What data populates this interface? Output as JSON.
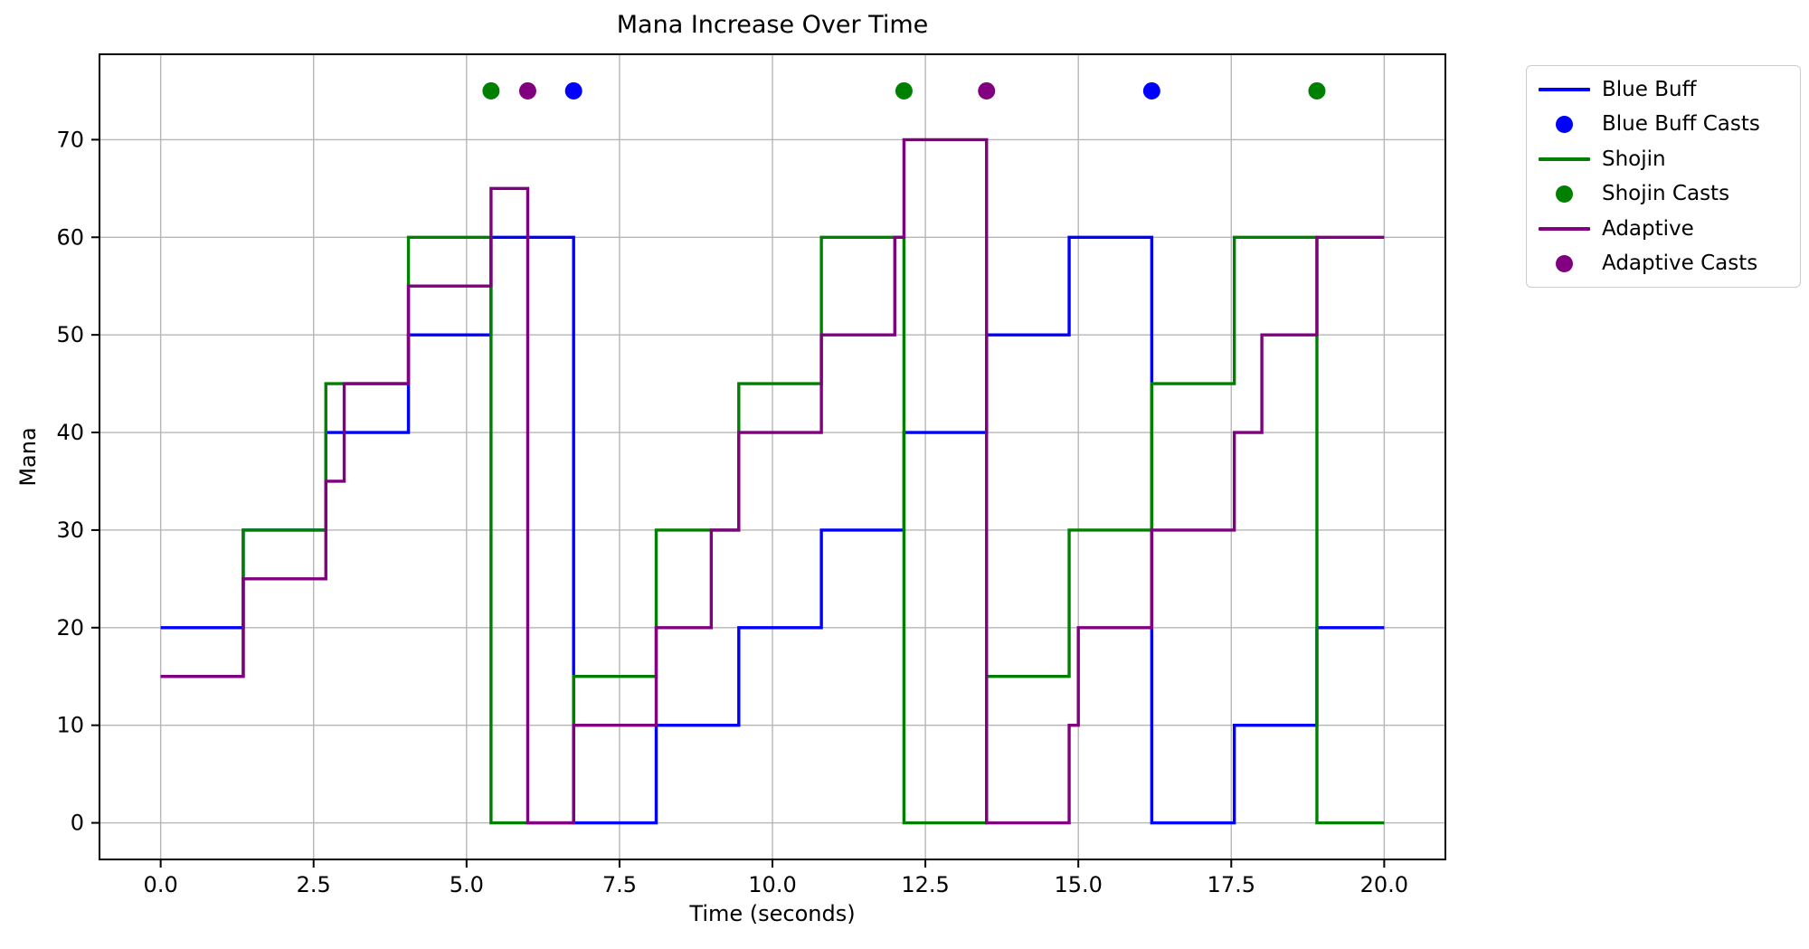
{
  "chart_data": {
    "type": "line",
    "subtype": "step-post",
    "title": "Mana Increase Over Time",
    "xlabel": "Time (seconds)",
    "ylabel": "Mana",
    "xlim": [
      -1,
      21
    ],
    "ylim": [
      -3.75,
      78.75
    ],
    "grid": true,
    "legend_position": "outside-upper-right",
    "cast_marker_y": 75,
    "xticks": {
      "values": [
        0,
        2.5,
        5,
        7.5,
        10,
        12.5,
        15,
        17.5,
        20
      ],
      "labels": [
        "0.0",
        "2.5",
        "5.0",
        "7.5",
        "10.0",
        "12.5",
        "15.0",
        "17.5",
        "20.0"
      ]
    },
    "yticks": {
      "values": [
        0,
        10,
        20,
        30,
        40,
        50,
        60,
        70
      ],
      "labels": [
        "0",
        "10",
        "20",
        "30",
        "40",
        "50",
        "60",
        "70"
      ]
    },
    "series": [
      {
        "name": "Blue Buff",
        "color": "#0000ff",
        "end": 20,
        "points": [
          [
            0,
            20
          ],
          [
            1.35,
            30
          ],
          [
            2.7,
            40
          ],
          [
            4.05,
            50
          ],
          [
            5.4,
            60
          ],
          [
            6.75,
            0
          ],
          [
            8.1,
            10
          ],
          [
            9.45,
            20
          ],
          [
            10.8,
            30
          ],
          [
            12.15,
            40
          ],
          [
            13.5,
            50
          ],
          [
            14.85,
            60
          ],
          [
            16.2,
            0
          ],
          [
            17.55,
            10
          ],
          [
            18.9,
            20
          ]
        ]
      },
      {
        "name": "Shojin",
        "color": "#008000",
        "end": 20,
        "points": [
          [
            0,
            15
          ],
          [
            1.35,
            30
          ],
          [
            2.7,
            45
          ],
          [
            4.05,
            60
          ],
          [
            5.4,
            0
          ],
          [
            6.75,
            15
          ],
          [
            8.1,
            30
          ],
          [
            9.45,
            45
          ],
          [
            10.8,
            60
          ],
          [
            12.15,
            0
          ],
          [
            13.5,
            15
          ],
          [
            14.85,
            30
          ],
          [
            16.2,
            45
          ],
          [
            17.55,
            60
          ],
          [
            18.9,
            0
          ]
        ]
      },
      {
        "name": "Adaptive",
        "color": "#800080",
        "end": 20,
        "points": [
          [
            0,
            15
          ],
          [
            1.35,
            25
          ],
          [
            2.7,
            35
          ],
          [
            3.0,
            45
          ],
          [
            4.05,
            55
          ],
          [
            5.4,
            65
          ],
          [
            6.0,
            0
          ],
          [
            6.75,
            10
          ],
          [
            8.1,
            20
          ],
          [
            9.0,
            30
          ],
          [
            9.45,
            40
          ],
          [
            10.8,
            50
          ],
          [
            12.0,
            60
          ],
          [
            12.15,
            70
          ],
          [
            13.5,
            0
          ],
          [
            14.85,
            10
          ],
          [
            15.0,
            20
          ],
          [
            16.2,
            30
          ],
          [
            17.55,
            40
          ],
          [
            18.0,
            50
          ],
          [
            18.9,
            60
          ]
        ]
      }
    ],
    "cast_series": [
      {
        "name": "Blue Buff Casts",
        "color": "#0000ff",
        "times": [
          6.75,
          16.2
        ]
      },
      {
        "name": "Shojin Casts",
        "color": "#008000",
        "times": [
          5.4,
          12.15,
          18.9
        ]
      },
      {
        "name": "Adaptive Casts",
        "color": "#800080",
        "times": [
          6.0,
          13.5
        ]
      }
    ],
    "legend": [
      {
        "label": "Blue Buff",
        "glyph": "line",
        "color": "#0000ff"
      },
      {
        "label": "Blue Buff Casts",
        "glyph": "dot",
        "color": "#0000ff"
      },
      {
        "label": "Shojin",
        "glyph": "line",
        "color": "#008000"
      },
      {
        "label": "Shojin Casts",
        "glyph": "dot",
        "color": "#008000"
      },
      {
        "label": "Adaptive",
        "glyph": "line",
        "color": "#800080"
      },
      {
        "label": "Adaptive Casts",
        "glyph": "dot",
        "color": "#800080"
      }
    ]
  },
  "colors": {
    "background": "#ffffff",
    "grid": "#b6b6b6",
    "spine": "#000000",
    "text": "#000000",
    "legend_border": "#cccccc"
  }
}
